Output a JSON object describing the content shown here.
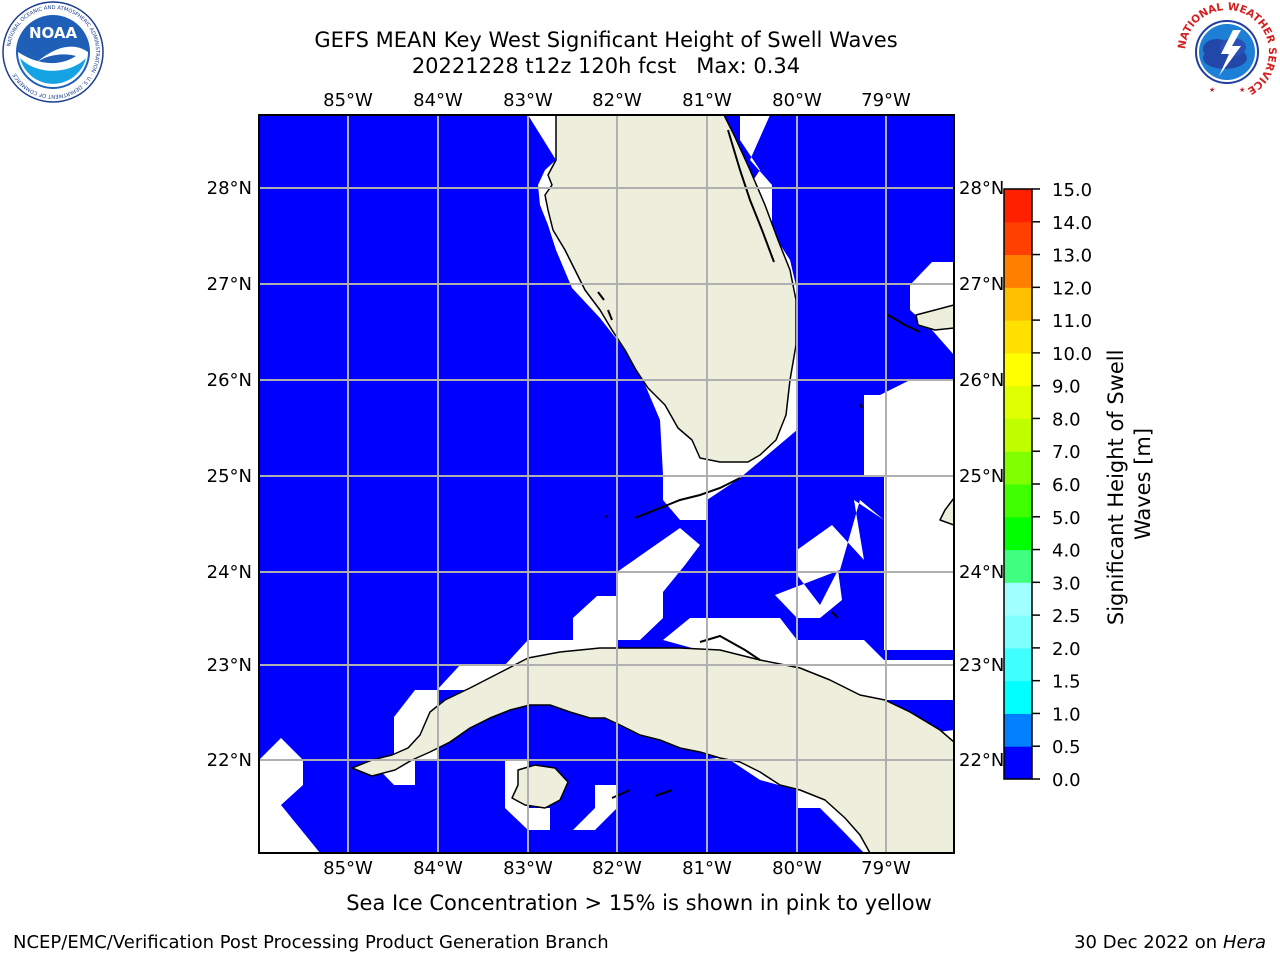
{
  "title_line1": "GEFS MEAN Key West Significant Height of Swell Waves",
  "title_line2": "20221228 t12z 120h fcst   Max: 0.34",
  "map": {
    "lon_labels": [
      "85°W",
      "84°W",
      "83°W",
      "82°W",
      "81°W",
      "80°W",
      "79°W"
    ],
    "lat_labels": [
      "28°N",
      "27°N",
      "26°N",
      "25°N",
      "24°N",
      "23°N",
      "22°N"
    ],
    "colors": {
      "ocean": "#0000ff",
      "land": "#eeeedd",
      "mask": "#ffffff",
      "grid": "#b0b0b0"
    }
  },
  "colorbar": {
    "label": "Significant Height of Swell Waves [m]",
    "ticks": [
      "0.0",
      "0.5",
      "1.0",
      "1.5",
      "2.0",
      "2.5",
      "3.0",
      "4.0",
      "5.0",
      "6.0",
      "7.0",
      "8.0",
      "9.0",
      "10.0",
      "11.0",
      "12.0",
      "13.0",
      "14.0",
      "15.0"
    ],
    "colors": [
      "#0000ff",
      "#0080ff",
      "#00ffff",
      "#40ffff",
      "#80ffff",
      "#a0ffff",
      "#40ff80",
      "#00ff00",
      "#40ff00",
      "#80ff00",
      "#c0ff00",
      "#e0ff00",
      "#ffff00",
      "#ffe000",
      "#ffc000",
      "#ff8000",
      "#ff4000",
      "#ff2000"
    ]
  },
  "sea_ice_note": "Sea Ice Concentration > 15% is shown in pink to yellow",
  "footer_left": "NCEP/EMC/Verification Post Processing Product Generation Branch",
  "footer_date": "30 Dec 2022 on",
  "footer_host": "Hera",
  "logos": {
    "noaa": "NOAA",
    "noaa_ring": "NATIONAL OCEANIC AND ATMOSPHERIC ADMINISTRATION · U.S. DEPARTMENT OF COMMERCE",
    "nws_ring": "NATIONAL WEATHER SERVICE"
  }
}
